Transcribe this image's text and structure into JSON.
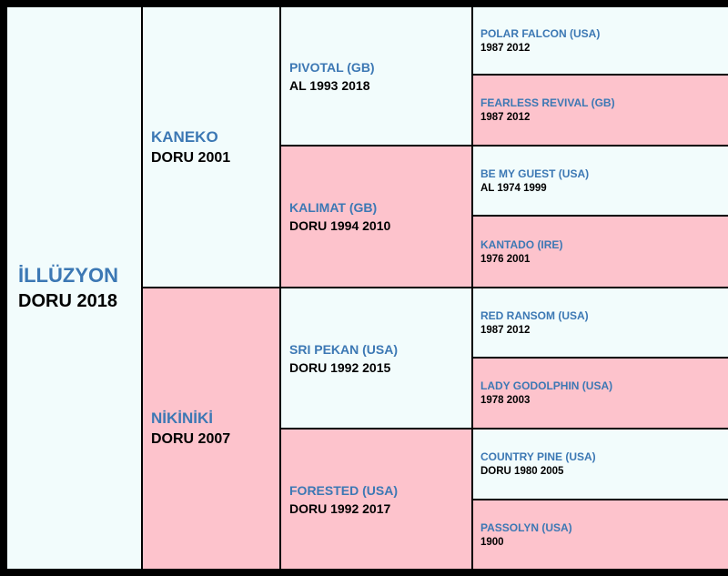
{
  "colors": {
    "male_bg": "#f2fcfc",
    "female_bg": "#fdc3cc",
    "name_color": "#3c78b4",
    "grid_line": "#000000"
  },
  "subject": {
    "name": "İLLÜZYON",
    "detail": "DORU 2018"
  },
  "sire": {
    "name": "KANEKO",
    "detail": "DORU 2001"
  },
  "dam": {
    "name": "NİKİNİKİ",
    "detail": "DORU 2007"
  },
  "sire_sire": {
    "name": "PIVOTAL (GB)",
    "detail": "AL 1993 2018"
  },
  "sire_dam": {
    "name": "KALIMAT (GB)",
    "detail": "DORU 1994 2010"
  },
  "dam_sire": {
    "name": "SRI PEKAN (USA)",
    "detail": "DORU 1992 2015"
  },
  "dam_dam": {
    "name": "FORESTED (USA)",
    "detail": "DORU 1992 2017"
  },
  "g4": [
    {
      "name": "POLAR FALCON (USA)",
      "detail": "1987 2012"
    },
    {
      "name": "FEARLESS REVIVAL (GB)",
      "detail": "1987 2012"
    },
    {
      "name": "BE MY GUEST (USA)",
      "detail": "AL 1974 1999"
    },
    {
      "name": "KANTADO (IRE)",
      "detail": "1976 2001"
    },
    {
      "name": "RED RANSOM (USA)",
      "detail": "1987 2012"
    },
    {
      "name": "LADY GODOLPHIN (USA)",
      "detail": "1978 2003"
    },
    {
      "name": "COUNTRY PINE (USA)",
      "detail": "DORU 1980 2005"
    },
    {
      "name": "PASSOLYN (USA)",
      "detail": "1900"
    }
  ]
}
